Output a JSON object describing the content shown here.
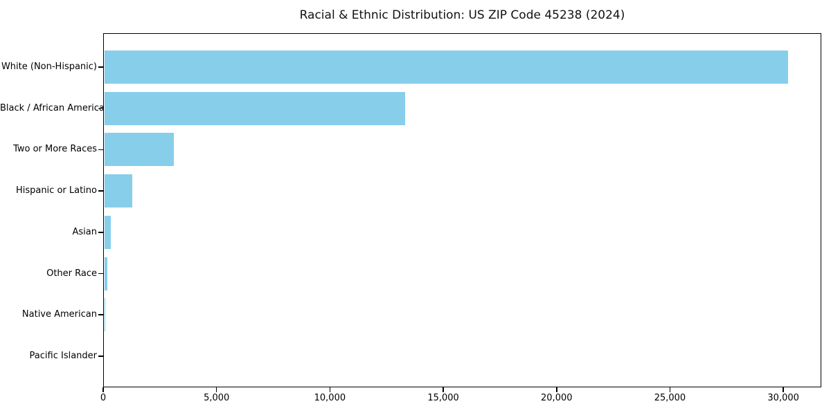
{
  "title": "Racial & Ethnic Distribution: US ZIP Code 45238 (2024)",
  "chart_data": {
    "type": "bar",
    "orientation": "horizontal",
    "title": "Racial & Ethnic Distribution: US ZIP Code 45238 (2024)",
    "xlabel": "",
    "ylabel": "",
    "categories": [
      "White (Non-Hispanic)",
      "Black / African American",
      "Two or More Races",
      "Hispanic or Latino",
      "Asian",
      "Other Race",
      "Native American",
      "Pacific Islander"
    ],
    "values": [
      30150,
      13270,
      3080,
      1230,
      280,
      150,
      40,
      15
    ],
    "xlim": [
      0,
      31675
    ],
    "x_ticks": [
      0,
      5000,
      10000,
      15000,
      20000,
      25000,
      30000
    ],
    "x_tick_labels": [
      "0",
      "5,000",
      "10,000",
      "15,000",
      "20,000",
      "25,000",
      "30,000"
    ],
    "bar_color": "#87CEEB",
    "background_color": "#ffffff",
    "frame_color": "#000000",
    "grid": false,
    "legend": false
  }
}
